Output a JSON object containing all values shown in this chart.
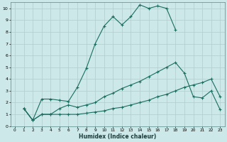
{
  "xlabel": "Humidex (Indice chaleur)",
  "background_color": "#cce8e8",
  "grid_color": "#b0cccc",
  "line_color": "#1a6e60",
  "xlim": [
    -0.5,
    23.5
  ],
  "ylim": [
    0,
    10.5
  ],
  "xticks": [
    0,
    1,
    2,
    3,
    4,
    5,
    6,
    7,
    8,
    9,
    10,
    11,
    12,
    13,
    14,
    15,
    16,
    17,
    18,
    19,
    20,
    21,
    22,
    23
  ],
  "yticks": [
    0,
    1,
    2,
    3,
    4,
    5,
    6,
    7,
    8,
    9,
    10
  ],
  "line1_x": [
    1,
    2,
    3,
    4,
    5,
    6,
    7,
    8,
    9,
    10,
    11,
    12,
    13,
    14,
    15,
    16,
    17,
    18,
    19,
    20,
    21,
    22,
    23
  ],
  "line1_y": [
    1.5,
    0.5,
    1.0,
    1.0,
    1.0,
    1.0,
    1.0,
    1.1,
    1.2,
    1.3,
    1.5,
    1.6,
    1.8,
    2.0,
    2.2,
    2.5,
    2.7,
    3.0,
    3.3,
    3.5,
    3.7,
    4.0,
    2.5
  ],
  "line2_x": [
    1,
    2,
    3,
    4,
    5,
    6,
    7,
    8,
    9,
    10,
    11,
    12,
    13,
    14,
    15,
    16,
    17,
    18,
    19,
    20,
    21,
    22,
    23
  ],
  "line2_y": [
    1.5,
    0.5,
    1.0,
    1.0,
    1.5,
    1.8,
    1.6,
    1.8,
    2.0,
    2.5,
    2.8,
    3.2,
    3.5,
    3.8,
    4.2,
    4.6,
    5.0,
    5.4,
    4.5,
    2.5,
    2.4,
    3.0,
    1.4
  ],
  "line3_x": [
    1,
    2,
    3,
    4,
    5,
    6,
    7,
    8,
    9,
    10,
    11,
    12,
    13,
    14,
    15,
    16,
    17,
    18
  ],
  "line3_y": [
    1.5,
    0.5,
    2.3,
    2.3,
    2.2,
    2.1,
    3.3,
    4.9,
    7.0,
    8.5,
    9.3,
    8.6,
    9.3,
    10.3,
    10.0,
    10.2,
    10.0,
    8.2
  ]
}
